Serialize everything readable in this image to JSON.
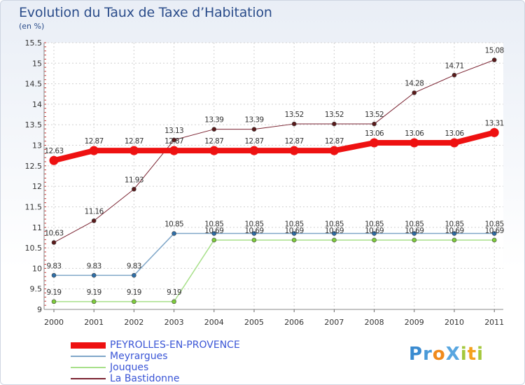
{
  "title": "Evolution du Taux de Taxe d’Habitation",
  "unit": "(en %)",
  "logo": "ProXiti",
  "chart_data": {
    "type": "line",
    "title": "Evolution du Taux de Taxe d’Habitation",
    "ylabel": "(en %)",
    "ylim": [
      9,
      15.5
    ],
    "yticks": [
      "9",
      "9.5",
      "10",
      "10.5",
      "11",
      "11.5",
      "12",
      "12.5",
      "13",
      "13.5",
      "14",
      "14.5",
      "15",
      "15.5"
    ],
    "categories": [
      "2000",
      "2001",
      "2002",
      "2003",
      "2004",
      "2005",
      "2006",
      "2007",
      "2008",
      "2009",
      "2010",
      "2011"
    ],
    "series": [
      {
        "name": "La Bastidonne",
        "color": "#7a2230",
        "marker": "#5a1a1a",
        "width": 1,
        "values": [
          10.63,
          11.16,
          11.93,
          13.13,
          13.39,
          13.39,
          13.52,
          13.52,
          13.52,
          14.28,
          14.71,
          15.08
        ],
        "labels": [
          "10.63",
          "11.16",
          "11.93",
          "13.13",
          "13.39",
          "13.39",
          "13.52",
          "13.52",
          "13.52",
          "14.28",
          "14.71",
          "15.08"
        ]
      },
      {
        "name": "Meyrargues",
        "color": "#7fa6c8",
        "marker": "#2f6fa8",
        "width": 1.5,
        "values": [
          9.83,
          9.83,
          9.83,
          10.85,
          10.85,
          10.85,
          10.85,
          10.85,
          10.85,
          10.85,
          10.85,
          10.85
        ],
        "labels": [
          "9.83",
          "9.83",
          "9.83",
          "10.85",
          "10.85",
          "10.85",
          "10.85",
          "10.85",
          "10.85",
          "10.85",
          "10.85",
          "10.85"
        ]
      },
      {
        "name": "Jouques",
        "color": "#a8e08a",
        "marker": "#7dcc3a",
        "width": 1.5,
        "values": [
          9.19,
          9.19,
          9.19,
          9.19,
          10.69,
          10.69,
          10.69,
          10.69,
          10.69,
          10.69,
          10.69,
          10.69
        ],
        "labels": [
          "9.19",
          "9.19",
          "9.19",
          "9.19",
          "10.69",
          "10.69",
          "10.69",
          "10.69",
          "10.69",
          "10.69",
          "10.69",
          "10.69"
        ]
      },
      {
        "name": "PEYROLLES-EN-PROVENCE",
        "color": "#ee1111",
        "marker": "#ee1111",
        "width": 8,
        "values": [
          12.63,
          12.87,
          12.87,
          12.87,
          12.87,
          12.87,
          12.87,
          12.87,
          13.06,
          13.06,
          13.06,
          13.31
        ],
        "labels": [
          "12.63",
          "12.87",
          "12.87",
          "12.87",
          "12.87",
          "12.87",
          "12.87",
          "12.87",
          "13.06",
          "13.06",
          "13.06",
          "13.31"
        ]
      }
    ],
    "legend": [
      "PEYROLLES-EN-PROVENCE",
      "Meyrargues",
      "Jouques",
      "La Bastidonne"
    ]
  }
}
